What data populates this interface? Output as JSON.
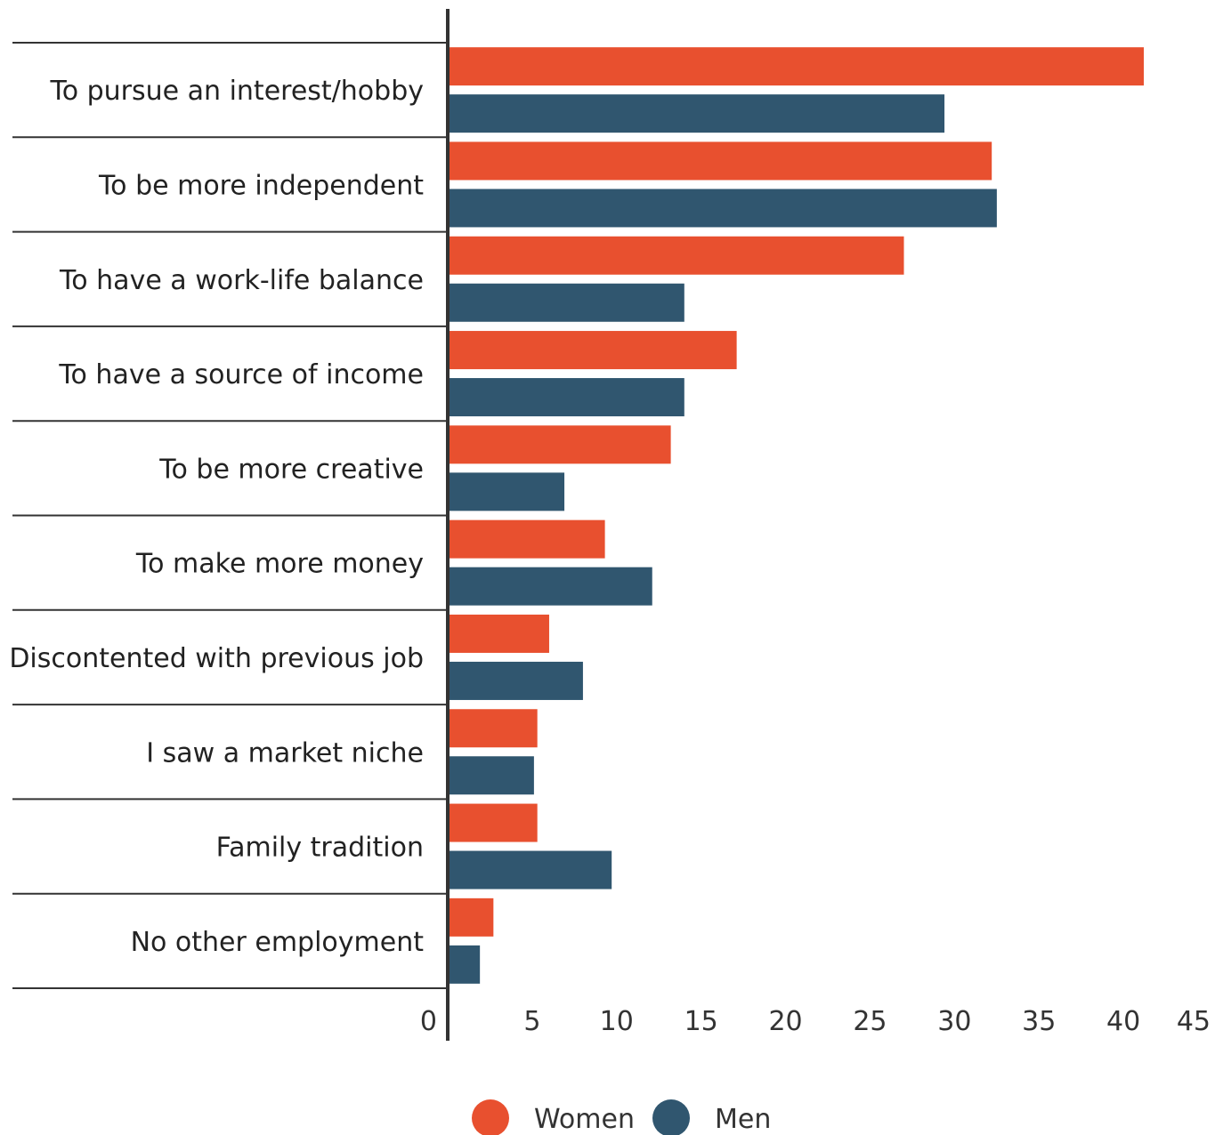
{
  "chart_data": {
    "type": "bar",
    "orientation": "horizontal",
    "categories": [
      "To pursue an interest/hobby",
      "To be more independent",
      "To have a work-life balance",
      "To have a source of income",
      "To be more creative",
      "To make more money",
      "Discontented with previous job",
      "I saw a market niche",
      "Family tradition",
      "No other employment"
    ],
    "series": [
      {
        "name": "Women",
        "color": "#e8502f",
        "values": [
          41.1,
          32.1,
          26.9,
          17.0,
          13.1,
          9.2,
          5.9,
          5.2,
          5.2,
          2.6
        ]
      },
      {
        "name": "Men",
        "color": "#30566f",
        "values": [
          29.3,
          32.4,
          13.9,
          13.9,
          6.8,
          12.0,
          7.9,
          5.0,
          9.6,
          1.8
        ]
      }
    ],
    "xlim": [
      0,
      45
    ],
    "xticks": [
      "0",
      "5",
      "10",
      "15",
      "20",
      "25",
      "30",
      "35",
      "40",
      "45"
    ],
    "legend_position": "bottom-center",
    "grid": false,
    "title": "",
    "xlabel": "",
    "ylabel": ""
  }
}
